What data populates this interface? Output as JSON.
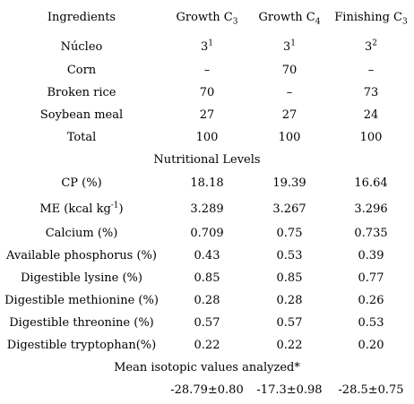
{
  "header": {
    "ingredients": "Ingredients",
    "col1_base": "Growth C",
    "col1_sub": "3",
    "col2_base": "Growth C",
    "col2_sub": "4",
    "col3_base": "Finishing C",
    "col3_sub": "3"
  },
  "ingredients": [
    {
      "label": "Núcleo",
      "v1": "3",
      "s1": "1",
      "v2": "3",
      "s2": "1",
      "v3": "3",
      "s3": "2"
    },
    {
      "label": "Corn",
      "v1": "–",
      "v2": "70",
      "v3": "–"
    },
    {
      "label": "Broken rice",
      "v1": "70",
      "v2": "–",
      "v3": "73"
    },
    {
      "label": "Soybean meal",
      "v1": "27",
      "v2": "27",
      "v3": "24"
    },
    {
      "label": "Total",
      "v1": "100",
      "v2": "100",
      "v3": "100"
    }
  ],
  "section_nutritional": "Nutritional Levels",
  "nutrients": [
    {
      "label": "CP (%)",
      "v1": "18.18",
      "v2": "19.39",
      "v3": "16.64"
    },
    {
      "label_pre": "ME (kcal kg",
      "label_sup": "-1",
      "label_post": ")",
      "v1": "3.289",
      "v2": "3.267",
      "v3": "3.296"
    },
    {
      "label": "Calcium (%)",
      "v1": "0.709",
      "v2": "0.75",
      "v3": "0.735"
    },
    {
      "label": "Available phosphorus (%)",
      "v1": "0.43",
      "v2": "0.53",
      "v3": "0.39"
    },
    {
      "label": "Digestible lysine (%)",
      "v1": "0.85",
      "v2": "0.85",
      "v3": "0.77"
    },
    {
      "label": "Digestible methionine (%)",
      "v1": "0.28",
      "v2": "0.28",
      "v3": "0.26"
    },
    {
      "label": "Digestible threonine (%)",
      "v1": "0.57",
      "v2": "0.57",
      "v3": "0.53"
    },
    {
      "label": "Digestible tryptophan(%)",
      "v1": "0.22",
      "v2": "0.22",
      "v3": "0.20"
    }
  ],
  "section_isotopic": "Mean isotopic values analyzed*",
  "isotopic": {
    "v1": "-28.79±0.80",
    "v2": "-17.3±0.98",
    "v3": "-28.5±0.75"
  }
}
